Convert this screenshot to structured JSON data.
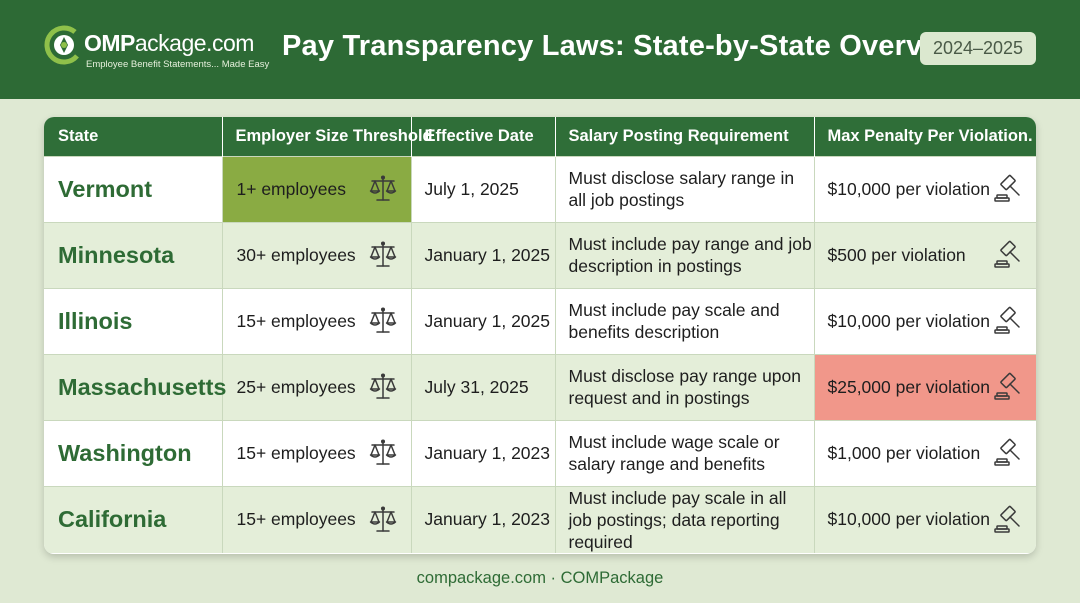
{
  "brand": {
    "logo_prefix": "C",
    "logo_bold": "OMP",
    "logo_rest": "ackage.com",
    "tagline": "Employee Benefit Statements... Made Easy",
    "primary_color": "#2d6a35",
    "highlight_green": "#8aab43",
    "highlight_red": "#f1978a"
  },
  "header": {
    "title": "Pay Transparency Laws: State-by-State Overview",
    "year_badge": "2024–2025"
  },
  "table": {
    "columns": [
      "State",
      "Employer Size Threshold",
      "Effective Date",
      "Salary Posting Requirement",
      "Max Penalty Per Violation."
    ],
    "size_icon": "balance-scale-icon",
    "penalty_icon": "gavel-icon",
    "rows": [
      {
        "state": "Vermont",
        "threshold": "1+ employees",
        "date": "July 1, 2025",
        "requirement": "Must disclose salary range in all job postings",
        "penalty": "$10,000 per violation",
        "highlight_threshold": true,
        "highlight_penalty": false
      },
      {
        "state": "Minnesota",
        "threshold": "30+ employees",
        "date": "January 1, 2025",
        "requirement": "Must include pay range and job description in postings",
        "penalty": "$500 per violation",
        "highlight_threshold": false,
        "highlight_penalty": false
      },
      {
        "state": "Illinois",
        "threshold": "15+ employees",
        "date": "January 1, 2025",
        "requirement": "Must include pay scale and benefits description",
        "penalty": "$10,000 per violation",
        "highlight_threshold": false,
        "highlight_penalty": false
      },
      {
        "state": "Massachusetts",
        "threshold": "25+ employees",
        "date": "July 31, 2025",
        "requirement": "Must disclose pay range upon request and in postings",
        "penalty": "$25,000 per violation",
        "highlight_threshold": false,
        "highlight_penalty": true
      },
      {
        "state": "Washington",
        "threshold": "15+ employees",
        "date": "January 1, 2023",
        "requirement": "Must include wage scale or salary range and benefits",
        "penalty": "$1,000 per violation",
        "highlight_threshold": false,
        "highlight_penalty": false
      },
      {
        "state": "California",
        "threshold": "15+ employees",
        "date": "January 1, 2023",
        "requirement": "Must include pay scale in all job postings; data reporting required",
        "penalty": "$10,000 per violation",
        "highlight_threshold": false,
        "highlight_penalty": false
      }
    ]
  },
  "footer": {
    "text": "compackage.com · COMPackage"
  }
}
